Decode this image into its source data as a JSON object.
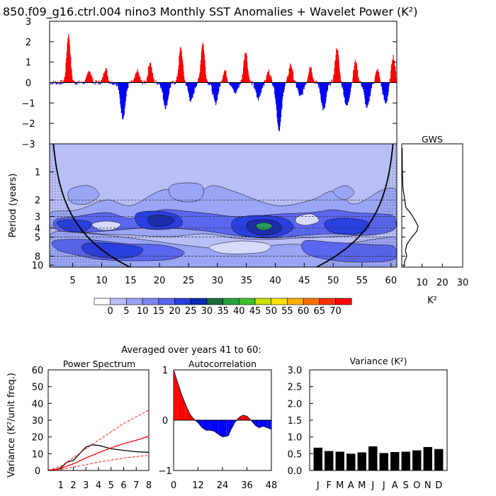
{
  "title_main": "850.f09_g16.ctrl.004 nino3 Monthly SST Anomalies + Wavelet Power (K²)",
  "chart_data": [
    {
      "type": "bar",
      "name": "sst-anomaly-timeseries",
      "x_range": [
        1,
        61
      ],
      "ylim": [
        -3,
        3
      ],
      "y_ticks": [
        -3,
        -2,
        -1,
        0,
        1,
        2,
        3
      ],
      "y_tick_labels": [
        "−3",
        "−2",
        "−1",
        "0",
        "1",
        "2",
        "3"
      ],
      "positive_color": "#ff0000",
      "negative_color": "#0000ff",
      "events": [
        {
          "year": 4.2,
          "value": 2.35
        },
        {
          "year": 7.8,
          "value": 0.6
        },
        {
          "year": 10.6,
          "value": 0.7
        },
        {
          "year": 13.6,
          "value": -1.7
        },
        {
          "year": 16.1,
          "value": 0.55
        },
        {
          "year": 18.3,
          "value": 1.0
        },
        {
          "year": 21.0,
          "value": -1.2
        },
        {
          "year": 23.6,
          "value": 1.7
        },
        {
          "year": 25.4,
          "value": -0.9
        },
        {
          "year": 27.4,
          "value": 1.95
        },
        {
          "year": 29.6,
          "value": -1.0
        },
        {
          "year": 31.2,
          "value": 0.6
        },
        {
          "year": 33.0,
          "value": -0.5
        },
        {
          "year": 34.8,
          "value": 1.55
        },
        {
          "year": 37.0,
          "value": -0.8
        },
        {
          "year": 38.8,
          "value": 0.55
        },
        {
          "year": 40.6,
          "value": -2.3
        },
        {
          "year": 42.6,
          "value": 0.9
        },
        {
          "year": 44.3,
          "value": -0.7
        },
        {
          "year": 46.0,
          "value": 0.8
        },
        {
          "year": 48.3,
          "value": -1.35
        },
        {
          "year": 50.6,
          "value": 1.7
        },
        {
          "year": 52.3,
          "value": -1.15
        },
        {
          "year": 53.8,
          "value": 1.05
        },
        {
          "year": 55.8,
          "value": -1.25
        },
        {
          "year": 57.6,
          "value": 0.6
        },
        {
          "year": 59.0,
          "value": -1.0
        },
        {
          "year": 60.3,
          "value": 1.3
        }
      ]
    },
    {
      "type": "heatmap",
      "name": "wavelet-power-spectrum",
      "ylabel": "Period (years)",
      "x_ticks": [
        5,
        10,
        15,
        20,
        25,
        30,
        35,
        40,
        45,
        50,
        55,
        60
      ],
      "y_ticks": [
        1,
        2,
        3,
        4,
        5,
        8,
        10
      ],
      "period_range": [
        0.5,
        10.5
      ],
      "x_range": [
        1,
        61
      ],
      "significance_periods": [
        2,
        3,
        4,
        5,
        8
      ],
      "features": [
        {
          "year": 38,
          "period": 3.6,
          "power": 40,
          "color": "#2c9a5c"
        },
        {
          "year": 38,
          "period": 3.6,
          "power": 30,
          "color": "#1c4bbf"
        },
        {
          "year": 22,
          "period": 3.4,
          "power": 25,
          "color": "#1c4bbf"
        },
        {
          "year": 53,
          "period": 3.3,
          "power": 25,
          "color": "#1c4bbf"
        },
        {
          "year": 10,
          "period": 3.4,
          "power": 20,
          "color": "#1c4bbf"
        },
        {
          "year": 17,
          "period": 6,
          "power": 20,
          "color": "#1c4bbf"
        },
        {
          "year": 6,
          "period": 5,
          "power": 20,
          "color": "#1c4bbf"
        },
        {
          "year": 25,
          "period": 2.2,
          "power": 20,
          "color": "#1c4bbf"
        }
      ]
    },
    {
      "type": "line",
      "name": "global-wavelet-spectrum",
      "title": "GWS",
      "xlabel": "K²",
      "x_ticks": [
        10,
        20,
        30
      ],
      "xlim": [
        0,
        30
      ],
      "points": [
        {
          "period": 0.55,
          "power": 0.2
        },
        {
          "period": 1.0,
          "power": 0.3
        },
        {
          "period": 1.5,
          "power": 0.6
        },
        {
          "period": 2.0,
          "power": 1.5
        },
        {
          "period": 2.4,
          "power": 2.0
        },
        {
          "period": 2.8,
          "power": 4.5
        },
        {
          "period": 3.3,
          "power": 6.5
        },
        {
          "period": 3.8,
          "power": 8.0
        },
        {
          "period": 4.3,
          "power": 7.5
        },
        {
          "period": 5.0,
          "power": 5.0
        },
        {
          "period": 6.0,
          "power": 2.5
        },
        {
          "period": 7.0,
          "power": 1.8
        },
        {
          "period": 8.0,
          "power": 2.5
        },
        {
          "period": 9.0,
          "power": 1.5
        },
        {
          "period": 10.5,
          "power": 1.0
        }
      ]
    },
    {
      "type": "heatmap-legend",
      "name": "power-colorbar",
      "labels": [
        "0",
        "5",
        "10",
        "15",
        "20",
        "25",
        "30",
        "35",
        "40",
        "45",
        "50",
        "55",
        "60",
        "65",
        "70"
      ],
      "colors": [
        "#ffffff",
        "#b8bff7",
        "#9aa5f5",
        "#7b86f2",
        "#5a66ee",
        "#2a3fe0",
        "#0a2ab0",
        "#1a6a3a",
        "#2aa040",
        "#40c030",
        "#c8e000",
        "#ffe000",
        "#ffb000",
        "#ff7000",
        "#ff3000",
        "#ff0000"
      ]
    },
    {
      "type": "line",
      "name": "power-spectrum",
      "title": "Power Spectrum",
      "suptitle": "Averaged over years 41 to 60:",
      "ylabel": "Variance (K²/unit freq.)",
      "x_ticks": [
        1,
        2,
        3,
        4,
        5,
        6,
        7,
        8
      ],
      "y_ticks": [
        0,
        10,
        20,
        30,
        40,
        50,
        60
      ],
      "xlim": [
        0,
        8
      ],
      "ylim": [
        0,
        60
      ],
      "series": [
        {
          "name": "spectrum",
          "color": "#000000",
          "x": [
            0,
            0.5,
            1,
            1.5,
            2,
            2.5,
            3,
            3.5,
            4,
            4.5,
            5,
            6,
            7,
            8
          ],
          "y": [
            0.2,
            0.5,
            1.5,
            5,
            6,
            10,
            14,
            15.3,
            15,
            14,
            13,
            12,
            11.2,
            10.8
          ]
        },
        {
          "name": "red-noise",
          "color": "#ff0000",
          "x": [
            0,
            1,
            2,
            3,
            4,
            5,
            6,
            7,
            8
          ],
          "y": [
            0,
            1.2,
            4,
            7.5,
            10.5,
            13.5,
            16,
            18,
            20.5
          ]
        },
        {
          "name": "upper-bound",
          "color": "#ff0000",
          "dashed": true,
          "x": [
            0,
            1,
            2,
            3,
            4,
            5,
            6,
            7,
            8
          ],
          "y": [
            0,
            2.5,
            7.5,
            13,
            18,
            23,
            28,
            32,
            36
          ]
        },
        {
          "name": "lower-bound",
          "color": "#ff0000",
          "dashed": true,
          "x": [
            0,
            1,
            2,
            3,
            4,
            5,
            6,
            7,
            8
          ],
          "y": [
            0,
            0.6,
            2,
            3.5,
            5,
            6.2,
            7.4,
            8.3,
            9
          ]
        }
      ]
    },
    {
      "type": "area",
      "name": "autocorrelation",
      "title": "Autocorrelation",
      "x_ticks": [
        0,
        12,
        24,
        36,
        48
      ],
      "y_ticks": [
        -1,
        0,
        1
      ],
      "y_tick_labels": [
        "−1",
        "0",
        "1"
      ],
      "xlim": [
        0,
        48
      ],
      "ylim": [
        -1,
        1
      ],
      "x": [
        0,
        2,
        4,
        6,
        8,
        10,
        12,
        14,
        16,
        18,
        20,
        22,
        24,
        26,
        27,
        28,
        30,
        32,
        34,
        36,
        38,
        40,
        42,
        44,
        46,
        48
      ],
      "y": [
        1.0,
        0.75,
        0.5,
        0.3,
        0.12,
        0.02,
        -0.05,
        -0.15,
        -0.2,
        -0.2,
        -0.22,
        -0.28,
        -0.33,
        -0.32,
        -0.3,
        -0.2,
        -0.05,
        0.05,
        0.1,
        0.08,
        0.0,
        -0.1,
        -0.15,
        -0.12,
        -0.15,
        -0.18
      ]
    },
    {
      "type": "bar",
      "name": "monthly-variance",
      "title": "Variance (K²)",
      "categories": [
        "J",
        "F",
        "M",
        "A",
        "M",
        "J",
        "J",
        "A",
        "S",
        "O",
        "N",
        "D"
      ],
      "values": [
        0.68,
        0.58,
        0.56,
        0.5,
        0.54,
        0.72,
        0.52,
        0.55,
        0.56,
        0.6,
        0.7,
        0.64
      ],
      "y_ticks": [
        0.0,
        0.5,
        1.0,
        1.5,
        2.0,
        2.5,
        3.0
      ],
      "y_tick_labels": [
        "0.0",
        "0.5",
        "1.0",
        "1.5",
        "2.0",
        "2.5",
        "3.0"
      ],
      "ylim": [
        0,
        3
      ]
    }
  ]
}
